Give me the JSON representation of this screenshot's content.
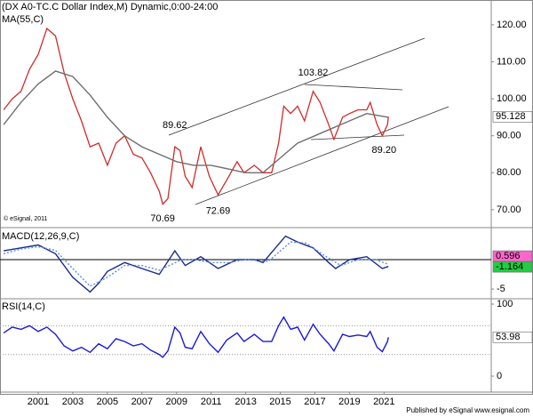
{
  "header": {
    "copyright": "© eSignal, 2011",
    "footer": "Published by eSignal www.esignal.com"
  },
  "chart_data": [
    {
      "type": "line",
      "title": "(DX A0-TC.C Dollar Index,M) Dynamic,0:00-24:00",
      "xlim": [
        1998.79,
        2027.2
      ],
      "xticks": [
        2001,
        2003,
        2005,
        2007,
        2009,
        2011,
        2013,
        2015,
        2017,
        2019,
        2021
      ],
      "ylim": [
        65.4,
        126.7
      ],
      "yticks": [
        {
          "value": 70,
          "label": "70.00"
        },
        {
          "value": 80,
          "label": "80.00"
        },
        {
          "value": 90,
          "label": "90.00"
        },
        {
          "value": 100,
          "label": "100.00"
        },
        {
          "value": 110,
          "label": "110.00"
        },
        {
          "value": 120,
          "label": "120.00"
        }
      ],
      "series": [
        {
          "color": "#d12b2b",
          "x": [
            1999.0,
            1999.5,
            2000.0,
            2000.5,
            2001.0,
            2001.5,
            2002.0,
            2002.5,
            2003.0,
            2003.5,
            2004.0,
            2004.5,
            2005.0,
            2005.5,
            2006.0,
            2006.5,
            2007.0,
            2007.5,
            2008.0,
            2008.2,
            2008.5,
            2008.9,
            2009.2,
            2009.5,
            2009.9,
            2010.4,
            2010.9,
            2011.4,
            2011.9,
            2012.5,
            2012.9,
            2013.5,
            2014.0,
            2014.5,
            2014.9,
            2015.2,
            2015.6,
            2016.0,
            2016.4,
            2016.9,
            2017.3,
            2017.8,
            2018.1,
            2018.6,
            2019.0,
            2019.5,
            2020.0,
            2020.2,
            2020.6,
            2020.9,
            2021.2,
            2021.25
          ],
          "values": [
            97,
            100,
            102,
            108,
            112,
            119,
            117,
            107,
            100,
            94,
            87,
            88,
            82,
            88,
            90,
            85,
            84,
            80,
            75,
            71.5,
            73,
            87,
            86,
            79,
            76,
            87,
            79,
            74,
            78,
            83,
            80,
            82,
            80,
            80,
            88,
            98,
            96,
            98,
            94,
            102,
            99,
            93,
            89,
            95,
            96,
            97,
            97,
            99,
            93,
            90,
            93,
            95.128
          ]
        },
        {
          "name": "MA(55,C)",
          "color": "#6e6e6e",
          "x": [
            1999,
            2000,
            2001,
            2002,
            2003,
            2004,
            2005,
            2006,
            2007,
            2008,
            2009,
            2010,
            2011,
            2012,
            2013,
            2014,
            2015,
            2016,
            2017,
            2018,
            2019,
            2020,
            2021.25
          ],
          "values": [
            93,
            99,
            104,
            107.5,
            106,
            101,
            95,
            90,
            87,
            85,
            83,
            82,
            82,
            81,
            80,
            80,
            84,
            88,
            90,
            92,
            94,
            96,
            95
          ]
        }
      ],
      "annotations": [
        {
          "x": 2016.9,
          "value": 103.82,
          "placement": "above"
        },
        {
          "x": 2008.9,
          "value": 89.62,
          "placement": "above"
        },
        {
          "x": 2008.2,
          "value": 70.69,
          "placement": "below"
        },
        {
          "x": 2011.4,
          "value": 72.69,
          "placement": "below"
        },
        {
          "x": 2021.0,
          "value": 89.2,
          "label": "89.20",
          "placement": "below"
        }
      ],
      "last_value": {
        "value": 95.128,
        "color": "#ffffff"
      }
    },
    {
      "type": "line",
      "title": "MACD(12,26,9,C)",
      "xlim": [
        1998.79,
        2027.2
      ],
      "ylim": [
        -6.5,
        5.15
      ],
      "yticks": [
        -5
      ],
      "zero_line": true,
      "series": [
        {
          "color": "#1a2a8a",
          "x": [
            1999,
            2000,
            2001,
            2002,
            2003,
            2004,
            2004.5,
            2005,
            2006,
            2007,
            2008,
            2008.9,
            2009.5,
            2010.4,
            2011.4,
            2012.5,
            2013.5,
            2014.0,
            2015.3,
            2016,
            2016.9,
            2017.8,
            2018.2,
            2019,
            2020,
            2020.9,
            2021.25
          ],
          "values": [
            1.5,
            2,
            2.5,
            1,
            -3,
            -5.5,
            -4,
            -2,
            -0.5,
            -1.5,
            -2.5,
            1.5,
            -1,
            0.5,
            -1.5,
            0,
            0,
            -0.5,
            4,
            3,
            2,
            -0.5,
            -1.5,
            0,
            0.5,
            -1.5,
            -1.164
          ]
        },
        {
          "color": "#5b8ee6",
          "dash": true,
          "x": [
            1999,
            2000,
            2001,
            2002,
            2003,
            2004,
            2005,
            2006,
            2007,
            2008,
            2009.3,
            2010,
            2011,
            2012,
            2013,
            2014.3,
            2015.6,
            2016.5,
            2017.5,
            2018.5,
            2019.5,
            2020.5,
            2021.25
          ],
          "values": [
            1,
            1.8,
            2.2,
            1.6,
            -1.5,
            -4.5,
            -3,
            -1,
            -1,
            -1.8,
            0,
            0,
            -0.5,
            -0.5,
            0,
            -0.3,
            3,
            2.8,
            0.8,
            -1,
            0,
            0,
            -0.8
          ]
        }
      ],
      "last_values": [
        {
          "value": 0.596,
          "color": "#ff66cc"
        },
        {
          "value": -1.164,
          "color": "#22cc44"
        }
      ]
    },
    {
      "type": "line",
      "title": "RSI(14,C)",
      "xlim": [
        1998.79,
        2027.2
      ],
      "ylim": [
        -21,
        106.2
      ],
      "yticks": [
        0,
        100
      ],
      "levels": [
        70,
        30
      ],
      "series": [
        {
          "color": "#1a1ad6",
          "x": [
            1999.0,
            1999.5,
            2000.0,
            2000.5,
            2001.0,
            2001.5,
            2002.0,
            2002.5,
            2003.0,
            2003.5,
            2004.0,
            2004.5,
            2005.0,
            2005.5,
            2006.0,
            2006.5,
            2007.0,
            2007.5,
            2008.0,
            2008.2,
            2008.5,
            2008.9,
            2009.2,
            2009.5,
            2009.9,
            2010.4,
            2010.9,
            2011.4,
            2011.9,
            2012.5,
            2012.9,
            2013.5,
            2014.0,
            2014.5,
            2014.9,
            2015.2,
            2015.6,
            2016.0,
            2016.4,
            2016.9,
            2017.3,
            2017.8,
            2018.1,
            2018.6,
            2019.0,
            2019.5,
            2020.0,
            2020.2,
            2020.6,
            2020.9,
            2021.2,
            2021.25
          ],
          "values": [
            60,
            68,
            65,
            70,
            62,
            68,
            58,
            42,
            35,
            40,
            33,
            45,
            38,
            52,
            48,
            42,
            45,
            36,
            30,
            26,
            35,
            68,
            60,
            40,
            38,
            62,
            45,
            33,
            50,
            60,
            48,
            58,
            48,
            48,
            70,
            82,
            65,
            68,
            50,
            72,
            58,
            45,
            35,
            58,
            55,
            57,
            55,
            62,
            40,
            34,
            48,
            53.98
          ]
        }
      ],
      "last_value": {
        "value": 53.98,
        "color": "#ffffff"
      }
    }
  ]
}
